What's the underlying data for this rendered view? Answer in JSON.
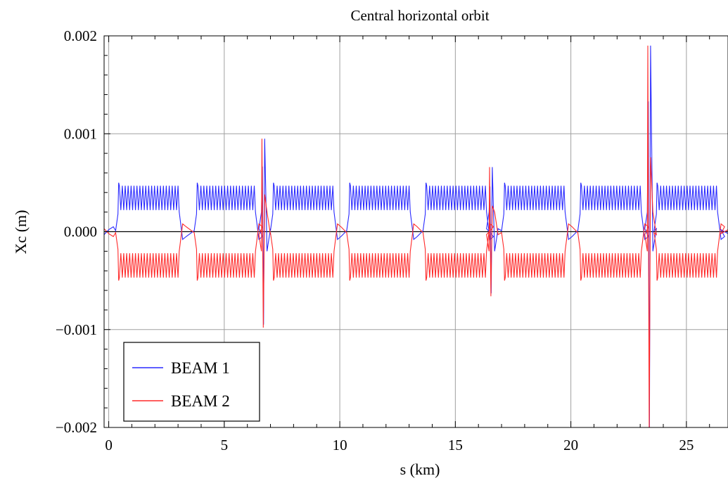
{
  "chart_data": {
    "type": "line",
    "title": "Central horizontal orbit",
    "xlabel": "s (km)",
    "ylabel": "Xc (m)",
    "xlim": [
      -0.2,
      26.8
    ],
    "ylim": [
      -0.002,
      0.002
    ],
    "xticks": [
      0,
      5,
      10,
      15,
      20,
      25
    ],
    "xtick_labels": [
      "0",
      "5",
      "10",
      "15",
      "20",
      "25"
    ],
    "yticks": [
      -0.002,
      -0.001,
      0,
      0.001,
      0.002
    ],
    "ytick_labels": [
      "−0.002",
      "−0.001",
      "0.000",
      "0.001",
      "0.002"
    ],
    "grid": true,
    "legend_position": "bottom-left",
    "arcs": [
      {
        "start": 0.4,
        "end": 3.0
      },
      {
        "start": 3.8,
        "end": 6.3
      },
      {
        "start": 7.1,
        "end": 9.7
      },
      {
        "start": 10.4,
        "end": 13.0
      },
      {
        "start": 13.7,
        "end": 16.3
      },
      {
        "start": 17.1,
        "end": 19.7
      },
      {
        "start": 20.4,
        "end": 23.0
      },
      {
        "start": 23.7,
        "end": 26.3
      }
    ],
    "oscillation_band_m": [
      0.00022,
      0.00047
    ],
    "spikes": [
      {
        "s": 6.65,
        "beam1_max": 0.00095,
        "beam1_min": -0.00095,
        "beam2_max": 0.00095,
        "beam2_min": -0.00098
      },
      {
        "s": 16.5,
        "beam1_max": 0.00066,
        "beam1_min": -0.00063,
        "beam2_max": 0.00066,
        "beam2_min": -0.00066
      },
      {
        "s": 23.35,
        "beam1_max": 0.0019,
        "beam1_min": -0.0021,
        "beam2_max": 0.0019,
        "beam2_min": -0.0021
      }
    ],
    "series": [
      {
        "name": "BEAM 1",
        "color": "#2a2aff",
        "mean_sign": 1
      },
      {
        "name": "BEAM 2",
        "color": "#ff2a2a",
        "mean_sign": -1
      }
    ]
  }
}
